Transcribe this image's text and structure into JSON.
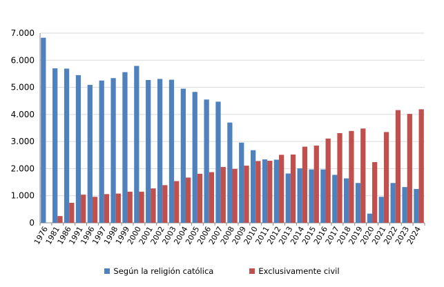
{
  "chart_data": {
    "type": "bar",
    "title": "",
    "xlabel": "",
    "ylabel": "",
    "ylim": [
      0,
      7000
    ],
    "yticks": [
      "0",
      "1.000",
      "2.000",
      "3.000",
      "4.000",
      "5.000",
      "6.000",
      "7.000"
    ],
    "ytick_values": [
      0,
      1000,
      2000,
      3000,
      4000,
      5000,
      6000,
      7000
    ],
    "grid": true,
    "legend": "bottom",
    "categories": [
      "1976",
      "1981",
      "1986",
      "1991",
      "1996",
      "1997",
      "1998",
      "1999",
      "2000",
      "2001",
      "2002",
      "2003",
      "2004",
      "2005",
      "2006",
      "2007",
      "2008",
      "2009",
      "2010",
      "2011",
      "2012",
      "2013",
      "2014",
      "2015",
      "2016",
      "2017",
      "2018",
      "2019",
      "2020",
      "2021",
      "2022",
      "2023",
      "2024"
    ],
    "series": [
      {
        "name": "Según la religión católica",
        "color": "#4f81bd",
        "values": [
          6830,
          5700,
          5690,
          5450,
          5090,
          5250,
          5340,
          5560,
          5790,
          5270,
          5310,
          5280,
          4950,
          4830,
          4550,
          4470,
          3700,
          2960,
          2680,
          2340,
          2330,
          1820,
          2010,
          1970,
          1970,
          1770,
          1640,
          1470,
          340,
          960,
          1470,
          1320,
          1250
        ]
      },
      {
        "name": "Exclusivamente civil",
        "color": "#c0504d",
        "values": [
          0,
          250,
          740,
          1040,
          960,
          1060,
          1080,
          1150,
          1150,
          1270,
          1390,
          1540,
          1670,
          1810,
          1870,
          2060,
          1990,
          2110,
          2280,
          2290,
          2510,
          2520,
          2810,
          2850,
          3110,
          3310,
          3390,
          3480,
          2240,
          3350,
          4160,
          4020,
          4190
        ]
      }
    ]
  }
}
